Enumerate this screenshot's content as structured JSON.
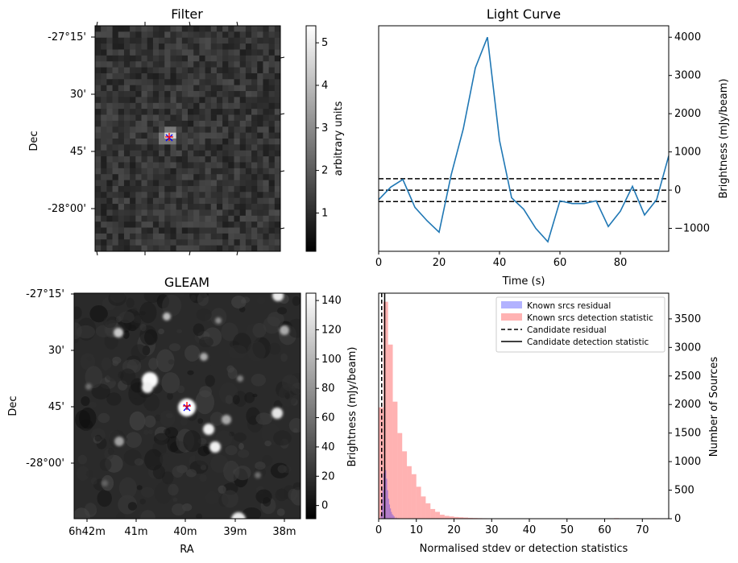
{
  "chart_data": [
    {
      "type": "heatmap",
      "title": "Filter",
      "ylabel": "Dec",
      "yticks": [
        "-27°15'",
        "30'",
        "45'",
        "-28°00'"
      ],
      "colorbar": {
        "label": "arbitrary units",
        "ticks": [
          "1",
          "2",
          "3",
          "4",
          "5"
        ],
        "range": [
          0.1,
          5.4
        ]
      },
      "markers": [
        {
          "symbol": "x",
          "color": "#0000ff"
        },
        {
          "symbol": "+",
          "color": "#ff0000"
        }
      ]
    },
    {
      "type": "line",
      "title": "Light Curve",
      "xlabel": "Time (s)",
      "ylabel": "Brightness (mJy/beam)",
      "xlim": [
        0,
        96
      ],
      "ylim": [
        -1600,
        4300
      ],
      "xticks": [
        "0",
        "20",
        "40",
        "60",
        "80"
      ],
      "yticks": [
        "−1000",
        "0",
        "1000",
        "2000",
        "3000",
        "4000"
      ],
      "series": [
        {
          "color": "#1f77b4",
          "x": [
            0,
            4,
            8,
            12,
            16,
            20,
            24,
            28,
            32,
            36,
            40,
            44,
            48,
            52,
            56,
            60,
            64,
            68,
            72,
            76,
            80,
            84,
            88,
            92,
            96
          ],
          "y": [
            -250,
            80,
            280,
            -450,
            -800,
            -1100,
            400,
            1600,
            3200,
            4000,
            1300,
            -200,
            -500,
            -1000,
            -1350,
            -280,
            -350,
            -350,
            -280,
            -950,
            -550,
            100,
            -650,
            -250,
            900
          ]
        }
      ],
      "hlines": [
        300,
        0,
        -300
      ]
    },
    {
      "type": "heatmap",
      "title": "GLEAM",
      "xlabel": "RA",
      "ylabel": "Dec",
      "xticks": [
        "6h42m",
        "41m",
        "40m",
        "39m",
        "38m"
      ],
      "yticks": [
        "-27°15'",
        "30'",
        "45'",
        "-28°00'"
      ],
      "colorbar": {
        "label": "Brightness (mJy/beam)",
        "ticks": [
          "0",
          "20",
          "40",
          "60",
          "80",
          "100",
          "120",
          "140"
        ],
        "range": [
          -9,
          145
        ]
      },
      "markers": [
        {
          "symbol": "x",
          "color": "#0000ff"
        },
        {
          "symbol": "+",
          "color": "#ff0000"
        }
      ]
    },
    {
      "type": "bar",
      "xlabel": "Normalised stdev or detection statistics",
      "ylabel": "Number of Sources",
      "xlim": [
        0,
        77
      ],
      "ylim": [
        0,
        3950
      ],
      "xticks": [
        "0",
        "10",
        "20",
        "30",
        "40",
        "50",
        "60",
        "70"
      ],
      "yticks": [
        "0",
        "500",
        "1000",
        "1500",
        "2000",
        "2500",
        "3000",
        "3500"
      ],
      "series": [
        {
          "name": "Known srcs residual",
          "color": "#0000ff",
          "bin_width": 0.25,
          "x": [
            0.5,
            0.75,
            1.0,
            1.25,
            1.5,
            1.75,
            2.0,
            2.25,
            2.5,
            2.75,
            3.0,
            3.25,
            3.5,
            3.75,
            4.0,
            4.5,
            5.0
          ],
          "values": [
            80,
            250,
            500,
            800,
            900,
            850,
            700,
            500,
            350,
            250,
            180,
            120,
            80,
            60,
            40,
            20,
            10
          ]
        },
        {
          "name": "Known srcs detection statistic",
          "color": "#ff0000",
          "bin_width": 1.25,
          "x": [
            0,
            1.25,
            2.5,
            3.75,
            5.0,
            6.25,
            7.5,
            8.75,
            10.0,
            11.25,
            12.5,
            13.75,
            15.0,
            16.25,
            17.5,
            18.75,
            20.0,
            21.25,
            22.5,
            23.75,
            25.0,
            26.25,
            27.5,
            28.75,
            30.0,
            31.25,
            32.5,
            33.75,
            35.0,
            36.25,
            37.5,
            38.75,
            40.0,
            62.5,
            72.5
          ],
          "values": [
            1950,
            3800,
            3050,
            2050,
            1500,
            1180,
            920,
            780,
            560,
            390,
            270,
            170,
            120,
            70,
            50,
            40,
            30,
            25,
            20,
            15,
            12,
            10,
            8,
            7,
            6,
            5,
            5,
            4,
            4,
            3,
            3,
            3,
            2,
            10,
            8
          ]
        }
      ],
      "vlines": [
        {
          "name": "Candidate residual",
          "style": "dashed",
          "x": 0.8
        },
        {
          "name": "Candidate detection statistic",
          "style": "solid",
          "x": 1.6
        }
      ],
      "legend": "top-right"
    }
  ]
}
